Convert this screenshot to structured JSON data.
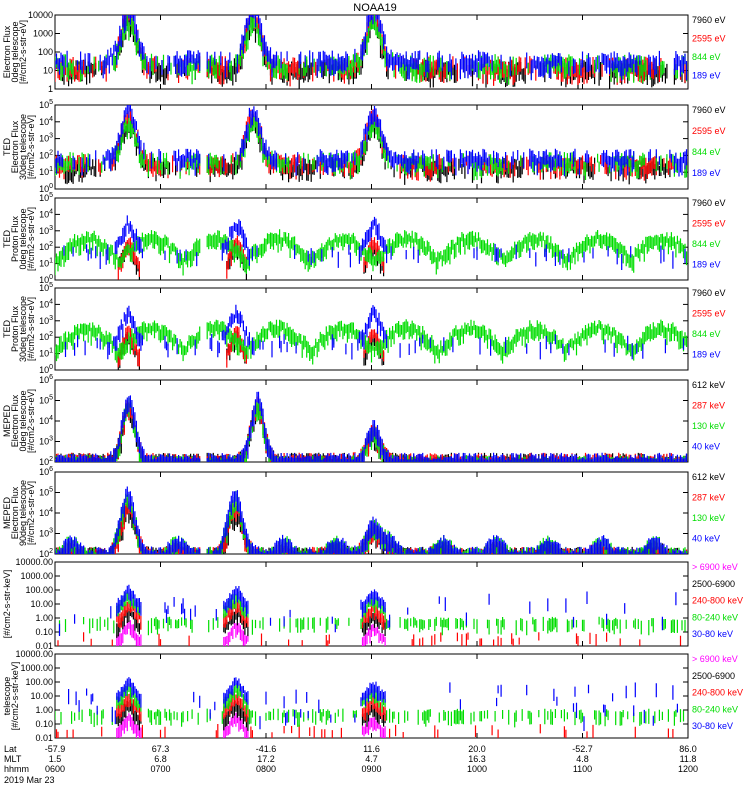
{
  "title": "NOAA19",
  "colors": {
    "black": "#000000",
    "red": "#ff0000",
    "green": "#00dd00",
    "blue": "#0000ff",
    "magenta": "#ff00ff"
  },
  "footer": {
    "rows": [
      {
        "label": "Lat",
        "values": [
          "-57.9",
          "67.3",
          "-41.6",
          "11.6",
          "20.0",
          "-52.7",
          "86.0"
        ]
      },
      {
        "label": "MLT",
        "values": [
          "1.5",
          "6.8",
          "17.2",
          "4.7",
          "16.3",
          "4.8",
          "11.8"
        ]
      },
      {
        "label": "hhmm",
        "values": [
          "0600",
          "0700",
          "0800",
          "0900",
          "1000",
          "1100",
          "1200"
        ]
      }
    ],
    "date": "2019 Mar 23"
  },
  "chart_data": [
    {
      "type": "scatter",
      "instrument": "",
      "ylabel": [
        "Electron Flux",
        "0deg telescope",
        "[#/cm2-s-str-eV]"
      ],
      "ylim": [
        1,
        10000
      ],
      "log": true,
      "tick_labels": [
        "1",
        "10",
        "100",
        "1000",
        "10000"
      ],
      "x_hours": [
        6,
        12
      ],
      "xticks": [
        "0600",
        "0700",
        "0800",
        "0900",
        "1000",
        "1100",
        "1200"
      ],
      "legend": [
        {
          "name": "7960 eV",
          "color": "black"
        },
        {
          "name": "2595 eV",
          "color": "red"
        },
        {
          "name": "844 eV",
          "color": "green"
        },
        {
          "name": "189 eV",
          "color": "blue"
        }
      ],
      "profile": "ted_e0"
    },
    {
      "type": "scatter",
      "instrument": "TED",
      "ylabel": [
        "Electron Flux",
        "30deg telescope",
        "[#/cm2-s-str-eV]"
      ],
      "ylim": [
        1,
        100000
      ],
      "log": true,
      "tick_labels": [
        "10^0",
        "10^1",
        "10^2",
        "10^3",
        "10^4",
        "10^5"
      ],
      "legend": [
        {
          "name": "7960 eV",
          "color": "black"
        },
        {
          "name": "2595 eV",
          "color": "red"
        },
        {
          "name": "844 eV",
          "color": "green"
        },
        {
          "name": "189 eV",
          "color": "blue"
        }
      ],
      "profile": "ted_e30"
    },
    {
      "type": "scatter",
      "instrument": "TED",
      "ylabel": [
        "Proton Flux",
        "0deg telescope",
        "[#/cm2-s-str-eV]"
      ],
      "ylim": [
        1,
        100000
      ],
      "log": true,
      "tick_labels": [
        "10^0",
        "10^1",
        "10^2",
        "10^3",
        "10^4",
        "10^5"
      ],
      "legend": [
        {
          "name": "7960 eV",
          "color": "black"
        },
        {
          "name": "2595 eV",
          "color": "red"
        },
        {
          "name": "844 eV",
          "color": "green"
        },
        {
          "name": "189 eV",
          "color": "blue"
        }
      ],
      "profile": "ted_p0"
    },
    {
      "type": "scatter",
      "instrument": "TED",
      "ylabel": [
        "Proton Flux",
        "30deg telescope",
        "[#/cm2-s-str-eV]"
      ],
      "ylim": [
        1,
        100000
      ],
      "log": true,
      "tick_labels": [
        "10^0",
        "10^1",
        "10^2",
        "10^3",
        "10^4",
        "10^5"
      ],
      "legend": [
        {
          "name": "7960 eV",
          "color": "black"
        },
        {
          "name": "2595 eV",
          "color": "red"
        },
        {
          "name": "844 eV",
          "color": "green"
        },
        {
          "name": "189 eV",
          "color": "blue"
        }
      ],
      "profile": "ted_p30"
    },
    {
      "type": "scatter",
      "instrument": "MEPED",
      "ylabel": [
        "Electron Flux",
        "0deg telescope",
        "[#/cm2-s-str-eV]"
      ],
      "ylim": [
        100,
        1000000
      ],
      "log": true,
      "tick_labels": [
        "10^2",
        "10^3",
        "10^4",
        "10^5",
        "10^6"
      ],
      "legend": [
        {
          "name": "612 keV",
          "color": "black"
        },
        {
          "name": "287 keV",
          "color": "red"
        },
        {
          "name": "130 keV",
          "color": "green"
        },
        {
          "name": "40 keV",
          "color": "blue"
        }
      ],
      "profile": "mep_e0"
    },
    {
      "type": "scatter",
      "instrument": "MEPED",
      "ylabel": [
        "Electron Flux",
        "90deg telescope",
        "[#/cm2-s-str-eV]"
      ],
      "ylim": [
        100,
        1000000
      ],
      "log": true,
      "tick_labels": [
        "10^2",
        "10^3",
        "10^4",
        "10^5",
        "10^6"
      ],
      "legend": [
        {
          "name": "612 keV",
          "color": "black"
        },
        {
          "name": "287 keV",
          "color": "red"
        },
        {
          "name": "130 keV",
          "color": "green"
        },
        {
          "name": "40 keV",
          "color": "blue"
        }
      ],
      "profile": "mep_e90"
    },
    {
      "type": "scatter",
      "instrument": "",
      "ylabel": [
        "",
        "",
        "[#/cm2-s-str-keV]"
      ],
      "ylim": [
        0.01,
        10000
      ],
      "log": true,
      "tick_labels": [
        "0.01",
        "0.10",
        "1.00",
        "10.00",
        "100.00",
        "1000.00",
        "10000.00"
      ],
      "legend": [
        {
          "name": "> 6900 keV",
          "color": "magenta"
        },
        {
          "name": "2500-6900",
          "color": "black"
        },
        {
          "name": "240-800 keV",
          "color": "red"
        },
        {
          "name": "80-240 keV",
          "color": "green"
        },
        {
          "name": "30-80 keV",
          "color": "blue"
        }
      ],
      "profile": "mep_p0"
    },
    {
      "type": "scatter",
      "instrument": "",
      "ylabel": [
        "",
        "telescope",
        "[#/cm2-s-str-keV]"
      ],
      "ylim": [
        0.01,
        10000
      ],
      "log": true,
      "tick_labels": [
        "0.01",
        "0.10",
        "1.00",
        "10.00",
        "100.00",
        "1000.00",
        "10000.00"
      ],
      "legend": [
        {
          "name": "> 6900 keV",
          "color": "magenta"
        },
        {
          "name": "2500-6900",
          "color": "black"
        },
        {
          "name": "240-800 keV",
          "color": "red"
        },
        {
          "name": "80-240 keV",
          "color": "green"
        },
        {
          "name": "30-80 keV",
          "color": "blue"
        }
      ],
      "profile": "mep_p90"
    }
  ]
}
